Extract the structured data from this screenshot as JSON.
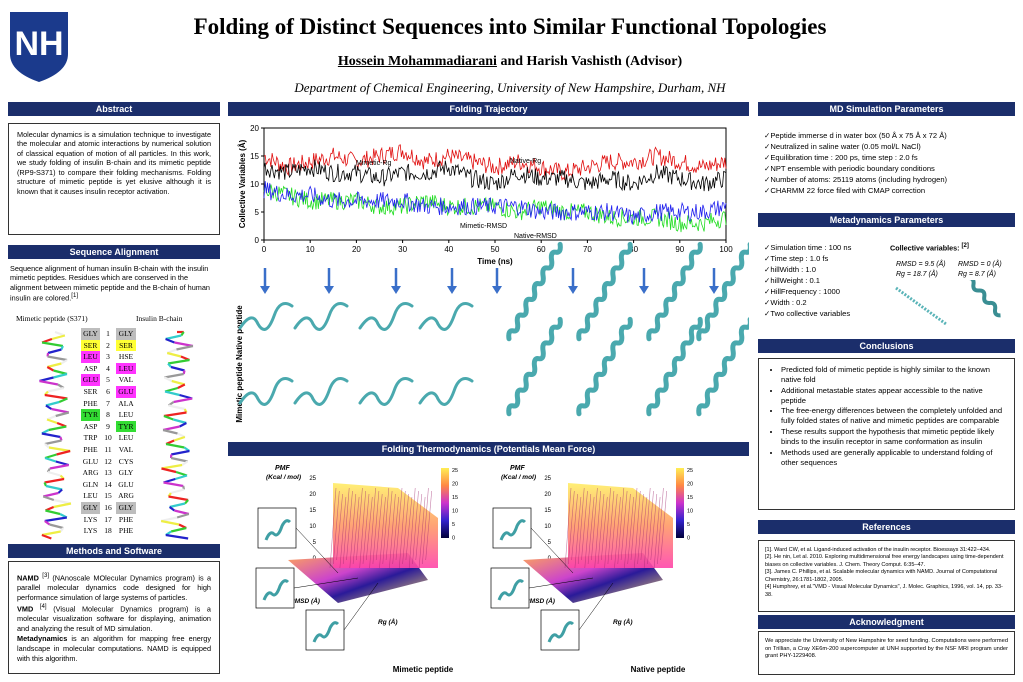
{
  "header": {
    "title": "Folding of Distinct Sequences into Similar Functional Topologies",
    "author_main": "Hossein Mohammadiarani",
    "author_rest": " and Harish Vashisth (Advisor)",
    "department": "Department of Chemical Engineering, University  of New Hampshire, Durham, NH",
    "logo_text": "NH"
  },
  "abstract": {
    "title": "Abstract",
    "text": "Molecular dynamics is a simulation technique to investigate the molecular and atomic interactions by numerical solution of classical equation of motion of all particles. In this work, we study folding of insulin B-chain and its mimetic peptide (RP9-S371) to compare their folding mechanisms. Folding structure of mimetic peptide is yet elusive although it is known   that it causes insulin receptor activation."
  },
  "sequence": {
    "title": "Sequence Alignment",
    "text": "Sequence alignment of human insulin B-chain with the insulin mimetic peptides. Residues which are conserved in the alignment between mimetic peptide and the B-chain of human insulin are colored.",
    "ref": "[1]",
    "col_left": "Mimetic peptide (S371)",
    "col_right": "Insulin B-chain",
    "rows": [
      {
        "m": "GLY",
        "n": "1",
        "i": "GLY",
        "mc": "#bdbdbd",
        "ic": "#bdbdbd"
      },
      {
        "m": "SER",
        "n": "2",
        "i": "SER",
        "mc": "#ffff33",
        "ic": "#ffff33"
      },
      {
        "m": "LEU",
        "n": "3",
        "i": "HSE",
        "mc": "#ff33ff",
        "ic": ""
      },
      {
        "m": "ASP",
        "n": "4",
        "i": "LEU",
        "mc": "",
        "ic": "#ff33ff"
      },
      {
        "m": "GLU",
        "n": "5",
        "i": "VAL",
        "mc": "#ff33ff",
        "ic": ""
      },
      {
        "m": "SER",
        "n": "6",
        "i": "GLU",
        "mc": "",
        "ic": "#ff33ff"
      },
      {
        "m": "PHE",
        "n": "7",
        "i": "ALA",
        "mc": "",
        "ic": ""
      },
      {
        "m": "TYR",
        "n": "8",
        "i": "LEU",
        "mc": "#33dd33",
        "ic": ""
      },
      {
        "m": "ASP",
        "n": "9",
        "i": "TYR",
        "mc": "",
        "ic": "#33dd33"
      },
      {
        "m": "TRP",
        "n": "10",
        "i": "LEU",
        "mc": "",
        "ic": ""
      },
      {
        "m": "PHE",
        "n": "11",
        "i": "VAL",
        "mc": "",
        "ic": ""
      },
      {
        "m": "GLU",
        "n": "12",
        "i": "CYS",
        "mc": "",
        "ic": ""
      },
      {
        "m": "ARG",
        "n": "13",
        "i": "GLY",
        "mc": "",
        "ic": ""
      },
      {
        "m": "GLN",
        "n": "14",
        "i": "GLU",
        "mc": "",
        "ic": ""
      },
      {
        "m": "LEU",
        "n": "15",
        "i": "ARG",
        "mc": "",
        "ic": ""
      },
      {
        "m": "GLY",
        "n": "16",
        "i": "GLY",
        "mc": "#bdbdbd",
        "ic": "#bdbdbd"
      },
      {
        "m": "LYS",
        "n": "17",
        "i": "PHE",
        "mc": "",
        "ic": ""
      },
      {
        "m": "LYS",
        "n": "18",
        "i": "PHE",
        "mc": "",
        "ic": ""
      }
    ]
  },
  "methods": {
    "title": "Methods and Software",
    "namd_name": "NAMD",
    "namd_ref": "[3]",
    "namd_desc": " (NAnoscale MOlecular Dynamics program) is a parallel molecular dynamics code designed for high performance simulation of large systems of particles.",
    "vmd_name": "VMD",
    "vmd_ref": "[4]",
    "vmd_desc": " (Visual Molecular Dynamics program) is a molecular visualization software for displaying, animation and analyzing the result of MD simulation.",
    "meta_name": "Metadynamics",
    "meta_desc": " is an algorithm for mapping free energy landscape in molecular computations. NAMD is equipped with this algorithm."
  },
  "trajectory": {
    "title": "Folding Trajectory",
    "ylabel": "Collective Variables (Å)",
    "xlabel": "Time (ns)",
    "side_label": "Mimetic peptide   Native peptide",
    "label_mimetic_rg": "Mimetic-Rg",
    "label_native_rg": "Native-Rg",
    "label_mimetic_rmsd": "Mimetic-RMSD",
    "label_native_rmsd": "Native-RMSD"
  },
  "chart_data": {
    "type": "line",
    "xlabel": "Time (ns)",
    "ylabel": "Collective Variables (Å)",
    "xlim": [
      0,
      100
    ],
    "ylim": [
      0,
      20
    ],
    "x_ticks": [
      0,
      10,
      20,
      30,
      40,
      50,
      60,
      70,
      80,
      90,
      100
    ],
    "y_ticks": [
      0,
      5,
      10,
      15,
      20
    ],
    "x": [
      0,
      5,
      10,
      15,
      20,
      25,
      30,
      35,
      40,
      45,
      50,
      55,
      60,
      65,
      70,
      75,
      80,
      85,
      90,
      95,
      100
    ],
    "series": [
      {
        "name": "Native-Rg",
        "color": "#e01010",
        "values": [
          15,
          13,
          14,
          15,
          14,
          15,
          16,
          14,
          15,
          14,
          13,
          14,
          13,
          12,
          13,
          14,
          14,
          15,
          14,
          13,
          14
        ]
      },
      {
        "name": "Mimetic-Rg",
        "color": "#000000",
        "values": [
          13,
          12,
          13,
          12,
          12,
          11,
          12,
          12,
          13,
          11,
          10,
          12,
          11,
          11,
          10,
          11,
          10,
          12,
          11,
          10,
          11
        ]
      },
      {
        "name": "Native-RMSD",
        "color": "#22dd22",
        "values": [
          9,
          8,
          7,
          7,
          7,
          6,
          6,
          7,
          6,
          6,
          6,
          5,
          6,
          5,
          5,
          4,
          4,
          4,
          3,
          3,
          4
        ]
      },
      {
        "name": "Mimetic-RMSD",
        "color": "#2222ee",
        "values": [
          9,
          8,
          8,
          7,
          7,
          7,
          7,
          6,
          6,
          6,
          6,
          6,
          5,
          5,
          5,
          5,
          4,
          5,
          5,
          5,
          6
        ]
      }
    ]
  },
  "thermo": {
    "title": "Folding Thermodynamics (Potentials Mean Force)",
    "pmf_label": "PMF",
    "pmf_unit": "(Kcal / mol)",
    "rmsd_label": "RMSD (Å)",
    "rg_label": "Rg (Å)",
    "left_caption": "Mimetic peptide",
    "right_caption": "Native peptide",
    "colorbar_ticks": [
      "25",
      "20",
      "15",
      "10",
      "5",
      "0"
    ],
    "z_ticks": [
      "25",
      "20",
      "15",
      "10",
      "5",
      "0"
    ]
  },
  "md_params": {
    "title": "MD Simulation Parameters",
    "items": [
      "✓Peptide immerse d in water box (50 Å x 75 Å x 72 Å)",
      "✓Neutralized  in saline water (0.05 mol/L NaCl)",
      "✓Equilibration time : 200 ps, time step : 2.0 fs",
      "✓NPT ensemble with periodic boundary conditions",
      "✓Number of atoms: 25119 atoms (including hydrogen)",
      "✓CHARMM 22 force filed with CMAP correction"
    ]
  },
  "metadyn": {
    "title": "Metadynamics Parameters",
    "items": [
      "✓Simulation time : 100 ns",
      "✓Time step : 1.0 fs",
      "✓hillWidth : 1.0",
      "✓hillWeight  : 0.1",
      "✓HillFrequency : 1000",
      "✓Width : 0.2",
      "✓Two collective variables"
    ],
    "cv_title": "Collective variables:",
    "cv_ref": "[2]",
    "left_rmsd": "RMSD = 9.5 (Å)",
    "left_rg": "Rg = 18.7 (Å)",
    "right_rmsd": "RMSD = 0 (Å)",
    "right_rg": "Rg = 8.7 (Å)"
  },
  "conclusions": {
    "title": "Conclusions",
    "items": [
      "Predicted fold of mimetic peptide is highly similar to the known native fold",
      "Additional metastable states appear accessible to the native peptide",
      "The free-energy differences between the completely unfolded and fully folded states of native and mimetic peptides are comparable",
      "These results support the hypothesis that mimetic peptide likely binds to the insulin receptor in same conformation as insulin",
      "Methods used are generally applicable to understand folding of other sequences"
    ]
  },
  "references": {
    "title": "References",
    "items": [
      "[1]. Ward CW, et al. Ligand-induced activation of the insulin receptor. Bioessays 31:422–434.",
      "[2]. He nin, Let al. 2010. Exploring multidimensional free energy landscapes using time-dependent biases on collective variables. J. Chem. Theory Comput. 6:35–47.",
      "[3]. James C. Phillips, et al. Scalable molecular dynamics with NAMD. Journal of Computational Chemistry, 26:1781-1802, 2005.",
      "[4] Humphrey, et al.\"VMD - Visual Molecular Dynamics\", J. Molec. Graphics, 1996, vol. 14, pp. 33-38."
    ]
  },
  "acknowledgment": {
    "title": "Acknowledgment",
    "text": "We appreciate the University of New Hampshire for seed funding. Computations were performed on Trillian, a Cray XE6m-200 supercomputer at UNH supported by the NSF MRI program under grant PHY-1229408."
  }
}
